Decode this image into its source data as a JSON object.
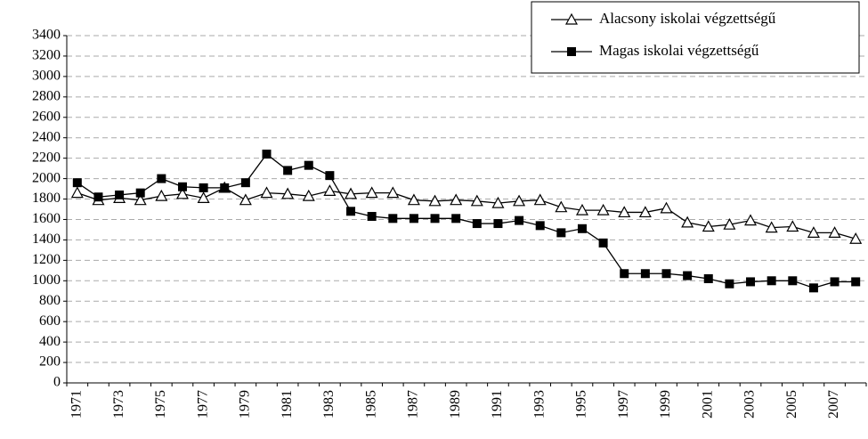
{
  "chart_data": {
    "type": "line",
    "categories": [
      "1971",
      null,
      "1973",
      null,
      "1975",
      null,
      "1977",
      null,
      "1979",
      null,
      "1981",
      null,
      "1983",
      null,
      "1985",
      null,
      "1987",
      null,
      "1989",
      null,
      "1991",
      null,
      "1993",
      null,
      "1995",
      null,
      "1997",
      null,
      "1999",
      null,
      "2001",
      null,
      "2003",
      null,
      "2005",
      null,
      "2007",
      null
    ],
    "series": [
      {
        "name": "Alacsony iskolai végzettségű",
        "color": "#000000",
        "marker": "triangle",
        "values": [
          1860,
          1790,
          1810,
          1790,
          1830,
          1850,
          1810,
          1910,
          1790,
          1860,
          1850,
          1830,
          1880,
          1850,
          1860,
          1860,
          1790,
          1780,
          1790,
          1780,
          1760,
          1780,
          1790,
          1720,
          1690,
          1690,
          1670,
          1670,
          1710,
          1570,
          1530,
          1550,
          1590,
          1520,
          1530,
          1470,
          1470,
          1410
        ]
      },
      {
        "name": "Magas iskolai végzettségű",
        "color": "#000000",
        "marker": "square",
        "values": [
          1960,
          1820,
          1840,
          1860,
          2000,
          1920,
          1910,
          1910,
          1960,
          2240,
          2080,
          2130,
          2030,
          1680,
          1630,
          1610,
          1610,
          1610,
          1610,
          1560,
          1560,
          1590,
          1540,
          1470,
          1510,
          1370,
          1070,
          1070,
          1070,
          1050,
          1020,
          970,
          990,
          1000,
          1000,
          930,
          990,
          990
        ]
      }
    ],
    "ylim": [
      0,
      3400
    ],
    "yticks": [
      0,
      200,
      400,
      600,
      800,
      1000,
      1200,
      1400,
      1600,
      1800,
      2000,
      2200,
      2400,
      2600,
      2800,
      3000,
      3200,
      3400
    ],
    "grid": true,
    "legend": "upper right"
  }
}
